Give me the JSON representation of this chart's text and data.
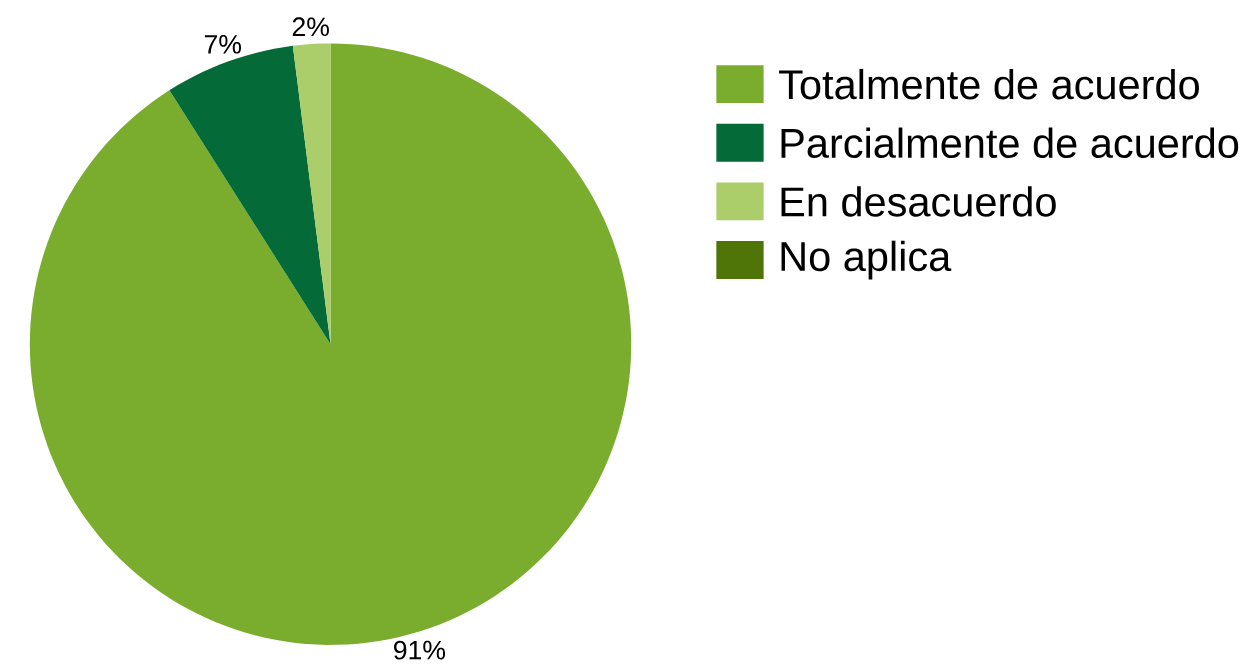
{
  "chart_data": {
    "type": "pie",
    "categories": [
      "Totalmente de acuerdo",
      "Parcialmente de acuerdo",
      "En desacuerdo",
      "No aplica"
    ],
    "values": [
      91,
      7,
      2,
      0
    ],
    "value_labels": [
      "91%",
      "7%",
      "2%",
      null
    ],
    "colors": [
      "#7aad2e",
      "#046a38",
      "#acce6a",
      "#4f7509"
    ],
    "legend": "top right"
  }
}
